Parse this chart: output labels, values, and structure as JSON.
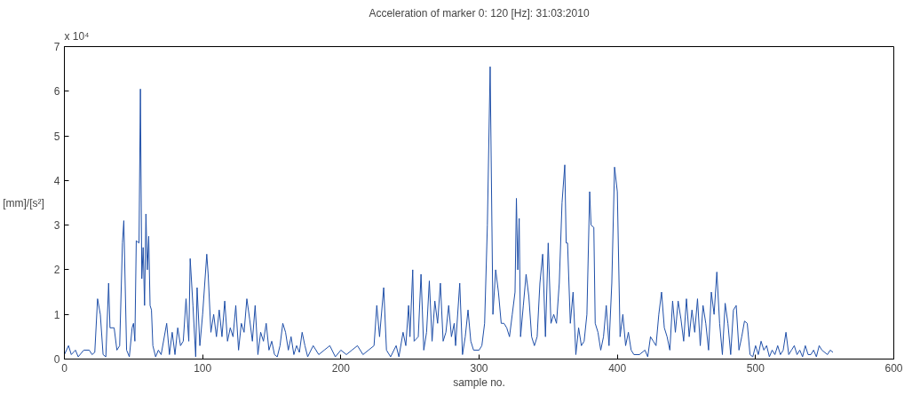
{
  "chart_data": {
    "type": "line",
    "title": "Acceleration of marker 0: 120 [Hz]: 31:03:2010",
    "xlabel": "sample no.",
    "ylabel": "[mm]/[s²]",
    "annotations": [
      "x 10⁴"
    ],
    "xlim": [
      0,
      600
    ],
    "xticks": [
      0,
      100,
      200,
      300,
      400,
      500,
      600
    ],
    "ylim": [
      0,
      7
    ],
    "yticks": [
      0,
      1,
      2,
      3,
      4,
      5,
      6,
      7
    ],
    "marker": "none",
    "line_style": "solid",
    "x": [
      0,
      3,
      5,
      8,
      10,
      14,
      18,
      20,
      22,
      24,
      26,
      28,
      30,
      32,
      33,
      36,
      38,
      40,
      42,
      43,
      45,
      47,
      49,
      50,
      51,
      52,
      54,
      55,
      56,
      57,
      58,
      59,
      60,
      61,
      62,
      63,
      64,
      66,
      68,
      70,
      74,
      76,
      78,
      80,
      82,
      84,
      86,
      88,
      90,
      91,
      93,
      95,
      96,
      98,
      100,
      103,
      104,
      106,
      108,
      110,
      112,
      114,
      116,
      118,
      120,
      122,
      124,
      126,
      128,
      130,
      132,
      134,
      136,
      138,
      140,
      142,
      144,
      146,
      148,
      150,
      152,
      154,
      156,
      158,
      160,
      162,
      164,
      166,
      168,
      170,
      172,
      174,
      176,
      180,
      184,
      188,
      192,
      196,
      200,
      204,
      208,
      212,
      216,
      220,
      224,
      226,
      228,
      231,
      233,
      236,
      240,
      242,
      245,
      247,
      249,
      250,
      252,
      253,
      256,
      258,
      260,
      262,
      264,
      266,
      268,
      270,
      272,
      274,
      276,
      278,
      280,
      282,
      283,
      286,
      288,
      290,
      292,
      294,
      296,
      300,
      302,
      304,
      306,
      308,
      310,
      312,
      314,
      316,
      318,
      320,
      322,
      324,
      326,
      327,
      328,
      329,
      330,
      332,
      334,
      336,
      338,
      340,
      342,
      344,
      346,
      348,
      350,
      352,
      354,
      356,
      358,
      360,
      362,
      363,
      364,
      366,
      368,
      370,
      372,
      374,
      376,
      378,
      380,
      381,
      383,
      384,
      386,
      388,
      390,
      392,
      394,
      396,
      398,
      400,
      402,
      404,
      406,
      408,
      410,
      412,
      416,
      420,
      422,
      424,
      426,
      428,
      430,
      432,
      434,
      436,
      438,
      440,
      442,
      444,
      446,
      448,
      450,
      452,
      454,
      456,
      458,
      460,
      462,
      464,
      466,
      468,
      470,
      472,
      474,
      476,
      478,
      480,
      482,
      484,
      486,
      488,
      490,
      492,
      494,
      496,
      498,
      500,
      502,
      504,
      506,
      508,
      510,
      512,
      514,
      516,
      518,
      520,
      522,
      524,
      526,
      528,
      530,
      532,
      534,
      536,
      538,
      540,
      542,
      544,
      546,
      548,
      552,
      554,
      556
    ],
    "series": [
      {
        "color": "#1f4fa8",
        "values": [
          0.1,
          0.3,
          0.1,
          0.2,
          0.05,
          0.2,
          0.2,
          0.1,
          0.15,
          1.35,
          1.0,
          0.1,
          0.05,
          1.7,
          0.7,
          0.7,
          0.2,
          0.3,
          2.6,
          3.1,
          0.2,
          0.05,
          0.7,
          0.8,
          0.4,
          2.65,
          2.6,
          6.05,
          1.8,
          2.5,
          1.2,
          3.25,
          2.0,
          2.75,
          1.2,
          1.1,
          0.3,
          0.05,
          0.2,
          0.1,
          0.8,
          0.1,
          0.6,
          0.1,
          0.7,
          0.3,
          0.4,
          1.35,
          0.4,
          2.25,
          1.2,
          0.05,
          1.6,
          0.3,
          1.0,
          2.35,
          1.9,
          0.6,
          1.0,
          0.5,
          1.1,
          0.5,
          1.3,
          0.4,
          0.7,
          0.5,
          1.2,
          0.2,
          0.8,
          0.6,
          1.35,
          0.9,
          0.4,
          1.2,
          0.1,
          0.6,
          0.4,
          0.8,
          0.2,
          0.4,
          0.1,
          0.05,
          0.3,
          0.8,
          0.6,
          0.2,
          0.5,
          0.1,
          0.3,
          0.15,
          0.6,
          0.3,
          0.05,
          0.3,
          0.1,
          0.2,
          0.3,
          0.05,
          0.2,
          0.1,
          0.2,
          0.3,
          0.1,
          0.2,
          0.3,
          1.2,
          0.5,
          1.6,
          0.2,
          0.05,
          0.3,
          0.05,
          0.6,
          0.3,
          1.2,
          0.5,
          2.0,
          0.4,
          0.5,
          1.9,
          0.2,
          0.6,
          1.75,
          0.4,
          1.3,
          0.8,
          1.7,
          0.4,
          0.6,
          1.2,
          0.5,
          0.8,
          0.3,
          1.7,
          0.1,
          0.5,
          1.1,
          0.4,
          0.2,
          0.2,
          0.3,
          0.8,
          3.0,
          6.55,
          1.0,
          2.0,
          1.5,
          0.8,
          0.8,
          0.7,
          0.5,
          1.0,
          1.5,
          3.6,
          2.0,
          3.15,
          0.5,
          1.2,
          1.9,
          1.4,
          0.5,
          0.3,
          0.5,
          1.7,
          2.35,
          0.5,
          2.6,
          0.8,
          1.0,
          0.8,
          1.7,
          3.5,
          4.35,
          2.6,
          2.6,
          0.8,
          1.5,
          0.1,
          0.7,
          0.3,
          0.4,
          1.0,
          3.75,
          3.0,
          2.95,
          0.8,
          0.6,
          0.2,
          0.5,
          1.2,
          0.3,
          1.7,
          4.3,
          3.75,
          0.5,
          1.0,
          0.3,
          0.6,
          0.2,
          0.1,
          0.1,
          0.2,
          0.05,
          0.5,
          0.4,
          0.3,
          1.0,
          1.5,
          0.7,
          0.5,
          0.2,
          1.3,
          0.6,
          1.3,
          0.9,
          0.4,
          1.35,
          0.5,
          1.1,
          0.6,
          1.35,
          0.3,
          1.2,
          0.8,
          0.2,
          1.5,
          1.0,
          1.95,
          0.8,
          0.1,
          1.25,
          0.8,
          0.1,
          1.1,
          1.2,
          0.2,
          0.5,
          0.85,
          0.8,
          0.1,
          0.05,
          0.3,
          0.1,
          0.4,
          0.2,
          0.3,
          0.05,
          0.2,
          0.1,
          0.3,
          0.1,
          0.2,
          0.6,
          0.1,
          0.2,
          0.3,
          0.1,
          0.2,
          0.05,
          0.3,
          0.1,
          0.1,
          0.2,
          0.05,
          0.3,
          0.2,
          0.1,
          0.2,
          0.15
        ]
      }
    ]
  }
}
